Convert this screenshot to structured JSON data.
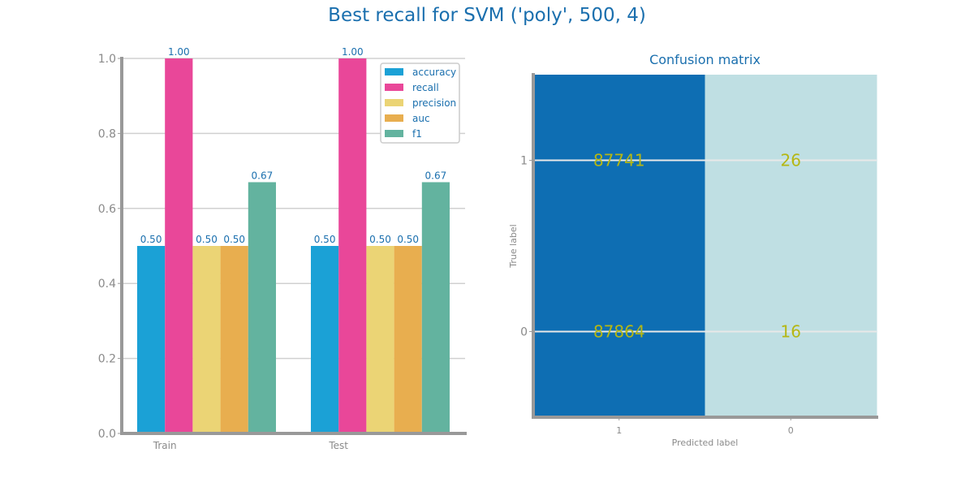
{
  "suptitle": "Best recall for SVM ('poly', 500, 4)",
  "chart_data": [
    {
      "type": "bar",
      "categories": [
        "Train",
        "Test"
      ],
      "series": [
        {
          "name": "accuracy",
          "values": [
            0.5,
            0.5
          ],
          "color": "#1ba1d6"
        },
        {
          "name": "recall",
          "values": [
            1.0,
            1.0
          ],
          "color": "#e94799"
        },
        {
          "name": "precision",
          "values": [
            0.5,
            0.5
          ],
          "color": "#ebd475"
        },
        {
          "name": "auc",
          "values": [
            0.5,
            0.5
          ],
          "color": "#e8ae4f"
        },
        {
          "name": "f1",
          "values": [
            0.67,
            0.67
          ],
          "color": "#63b39f"
        }
      ],
      "value_labels": [
        [
          "0.50",
          "0.50"
        ],
        [
          "1.00",
          "1.00"
        ],
        [
          "0.50",
          "0.50"
        ],
        [
          "0.50",
          "0.50"
        ],
        [
          "0.67",
          "0.67"
        ]
      ],
      "ylim": [
        0,
        1.0
      ],
      "yticks": [
        "0.0",
        "0.2",
        "0.4",
        "0.6",
        "0.8",
        "1.0"
      ],
      "grid": true,
      "legend_position": "top-right"
    },
    {
      "type": "heatmap",
      "title": "Confusion matrix",
      "xlabel": "Predicted label",
      "ylabel": "True label",
      "x_ticks": [
        "1",
        "0"
      ],
      "y_ticks": [
        "1",
        "0"
      ],
      "rows": [
        {
          "true_label": "1",
          "values": [
            87741,
            26
          ]
        },
        {
          "true_label": "0",
          "values": [
            87864,
            16
          ]
        }
      ],
      "cell_colors": [
        "#0e6eb3",
        "#bfdfe3"
      ]
    }
  ]
}
